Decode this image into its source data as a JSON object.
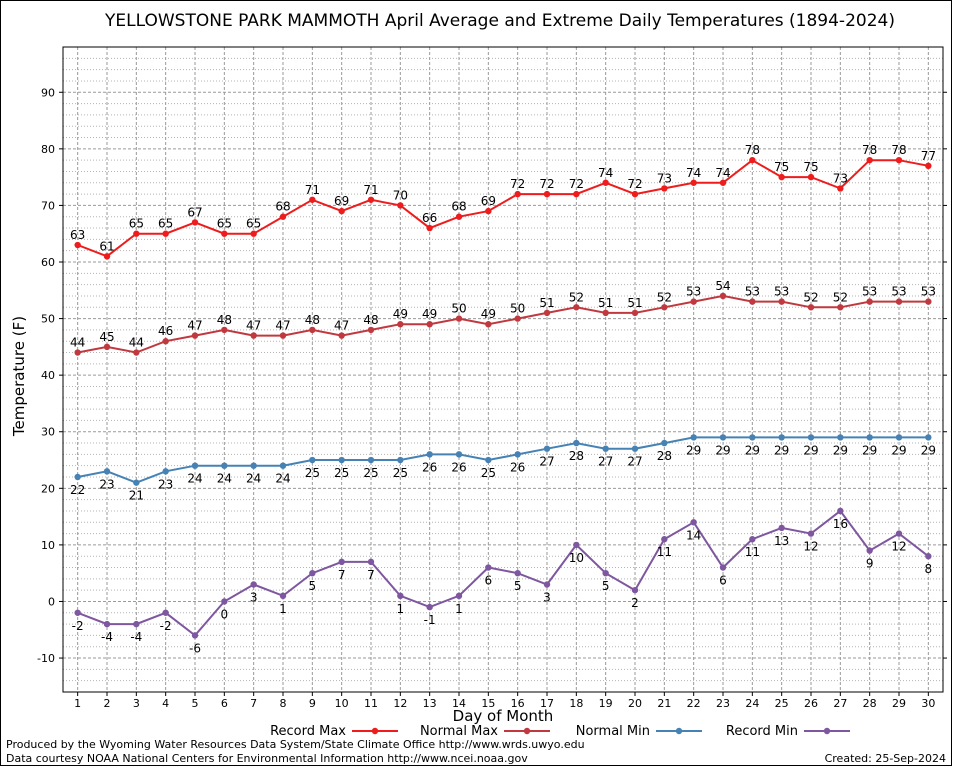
{
  "chart_data": {
    "type": "line",
    "title": "YELLOWSTONE PARK MAMMOTH April Average and Extreme Daily Temperatures (1894-2024)",
    "xlabel": "Day of Month",
    "ylabel": "Temperature (F)",
    "x": [
      1,
      2,
      3,
      4,
      5,
      6,
      7,
      8,
      9,
      10,
      11,
      12,
      13,
      14,
      15,
      16,
      17,
      18,
      19,
      20,
      21,
      22,
      23,
      24,
      25,
      26,
      27,
      28,
      29,
      30
    ],
    "xlim": [
      0.5,
      30.5
    ],
    "ylim": [
      -16,
      98
    ],
    "yticks": [
      -10,
      0,
      10,
      20,
      30,
      40,
      50,
      60,
      70,
      80,
      90
    ],
    "grid": true,
    "legend_position": "bottom",
    "series": [
      {
        "name": "Record Max",
        "color": "#ee1c1c",
        "label_pos": "above",
        "values": [
          63,
          61,
          65,
          65,
          67,
          65,
          65,
          68,
          71,
          69,
          71,
          70,
          66,
          68,
          69,
          72,
          72,
          72,
          74,
          72,
          73,
          74,
          74,
          78,
          75,
          75,
          73,
          78,
          78,
          77
        ]
      },
      {
        "name": "Normal Max",
        "color": "#c0393f",
        "label_pos": "above",
        "values": [
          44,
          45,
          44,
          46,
          47,
          48,
          47,
          47,
          48,
          47,
          48,
          49,
          49,
          50,
          49,
          50,
          51,
          52,
          51,
          51,
          52,
          53,
          54,
          53,
          53,
          52,
          52,
          53,
          53,
          53
        ]
      },
      {
        "name": "Normal Min",
        "color": "#4682b4",
        "label_pos": "below",
        "values": [
          22,
          23,
          21,
          23,
          24,
          24,
          24,
          24,
          25,
          25,
          25,
          25,
          26,
          26,
          25,
          26,
          27,
          28,
          27,
          27,
          28,
          29,
          29,
          29,
          29,
          29,
          29,
          29,
          29,
          29
        ]
      },
      {
        "name": "Record Min",
        "color": "#7e57a0",
        "label_pos": "below",
        "values": [
          -2,
          -4,
          -4,
          -2,
          -6,
          0,
          3,
          1,
          5,
          7,
          7,
          1,
          -1,
          1,
          6,
          5,
          3,
          10,
          5,
          2,
          11,
          14,
          6,
          11,
          13,
          12,
          16,
          9,
          12,
          8
        ]
      }
    ]
  },
  "footer": {
    "line1": "Produced by the Wyoming Water Resources Data System/State Climate Office http://www.wrds.uwyo.edu",
    "line2": "Data courtesy NOAA National Centers for Environmental Information http://www.ncei.noaa.gov",
    "created": "Created:  25-Sep-2024"
  }
}
